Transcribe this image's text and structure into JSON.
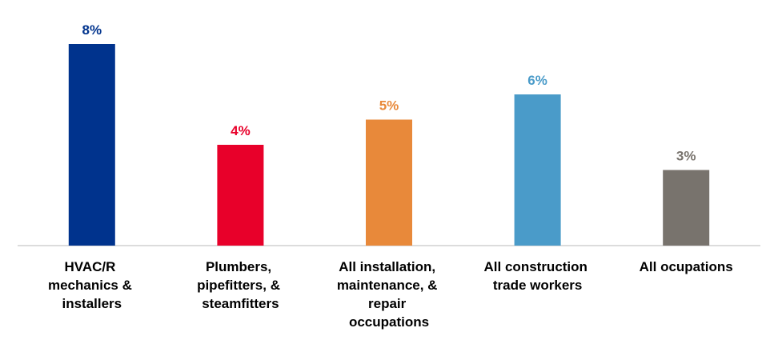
{
  "chart_data": {
    "type": "bar",
    "categories": [
      "HVAC/R mechanics & installers",
      "Plumbers, pipefitters, & steamfitters",
      "All installation, maintenance, & repair occupations",
      "All construction trade workers",
      "All ocupations"
    ],
    "values": [
      8,
      4,
      5,
      6,
      3
    ],
    "value_labels": [
      "8%",
      "4%",
      "5%",
      "6%",
      "3%"
    ],
    "colors": [
      "#00338d",
      "#e8002a",
      "#e8893a",
      "#4a9bc9",
      "#78736d"
    ]
  }
}
